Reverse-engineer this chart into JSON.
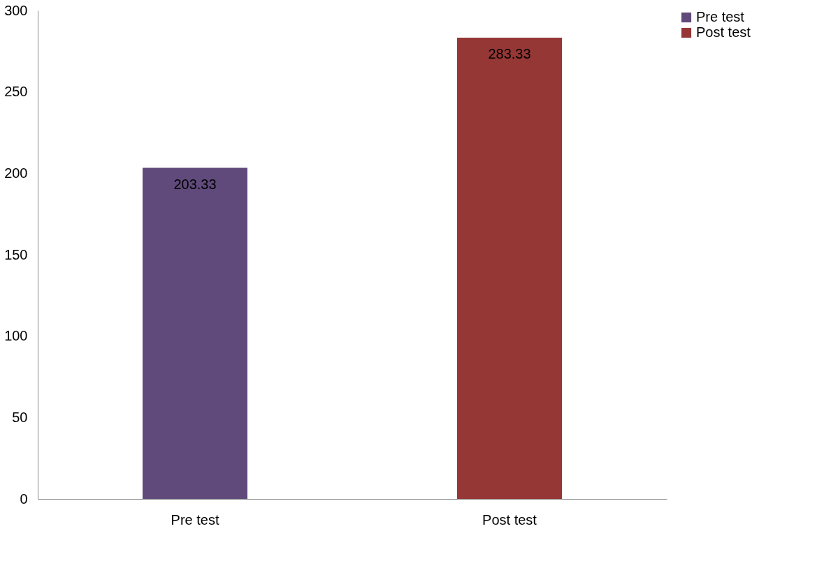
{
  "chart_data": {
    "type": "bar",
    "categories": [
      "Pre test",
      "Post test"
    ],
    "series": [
      {
        "name": "Pre test",
        "color": "#604a7b",
        "values": [
          203.33,
          null
        ]
      },
      {
        "name": "Post test",
        "color": "#953735",
        "values": [
          null,
          283.33
        ]
      }
    ],
    "ylim": [
      0,
      300
    ],
    "yticks": [
      0,
      50,
      100,
      150,
      200,
      250,
      300
    ],
    "grid": false,
    "legend": "right",
    "data_labels": true
  }
}
